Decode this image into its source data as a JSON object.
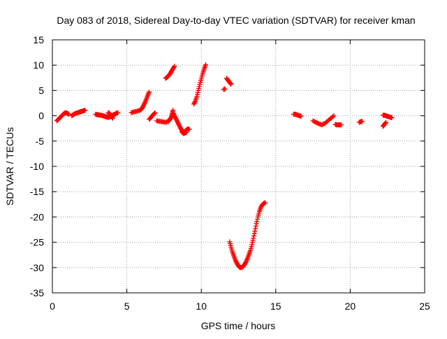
{
  "chart_data": {
    "type": "scatter",
    "title": "Day 083 of 2018, Sidereal Day-to-day VTEC variation (SDTVAR) for receiver kman",
    "xlabel": "GPS time / hours",
    "ylabel": "SDTVAR / TECUs",
    "xlim": [
      0,
      25
    ],
    "ylim": [
      -35,
      15
    ],
    "xticks": [
      "0",
      "5",
      "10",
      "15",
      "20",
      "25"
    ],
    "yticks": [
      "15",
      "10",
      "5",
      "0",
      "-5",
      "-10",
      "-15",
      "-20",
      "-25",
      "-30",
      "-35"
    ],
    "grid": true,
    "marker": "+",
    "color": "#ff0000",
    "series": [
      {
        "name": "SDTVAR",
        "segments": [
          [
            [
              0.3,
              -1.0
            ],
            [
              0.4,
              -0.7
            ],
            [
              0.5,
              -0.4
            ],
            [
              0.6,
              -0.1
            ],
            [
              0.7,
              0.2
            ],
            [
              0.8,
              0.5
            ],
            [
              0.9,
              0.6
            ],
            [
              1.0,
              0.5
            ],
            [
              1.1,
              0.3
            ]
          ],
          [
            [
              1.3,
              0.0
            ],
            [
              1.4,
              0.2
            ],
            [
              1.5,
              0.4
            ],
            [
              1.6,
              0.5
            ],
            [
              1.7,
              0.6
            ],
            [
              1.8,
              0.7
            ],
            [
              1.9,
              0.8
            ],
            [
              2.0,
              0.9
            ],
            [
              2.1,
              1.0
            ],
            [
              2.2,
              1.1
            ]
          ],
          [
            [
              2.9,
              0.3
            ],
            [
              3.0,
              0.2
            ],
            [
              3.1,
              0.2
            ],
            [
              3.2,
              0.1
            ],
            [
              3.3,
              0.1
            ],
            [
              3.4,
              0.0
            ],
            [
              3.5,
              -0.1
            ],
            [
              3.6,
              -0.2
            ],
            [
              3.7,
              -0.3
            ],
            [
              3.8,
              -0.3
            ],
            [
              3.9,
              -0.2
            ],
            [
              4.0,
              0.0
            ],
            [
              4.1,
              0.2
            ],
            [
              4.2,
              0.3
            ],
            [
              4.3,
              0.5
            ],
            [
              4.4,
              0.6
            ]
          ],
          [
            [
              3.75,
              0.6
            ],
            [
              3.85,
              0.4
            ],
            [
              3.95,
              0.0
            ],
            [
              4.05,
              -0.5
            ]
          ],
          [
            [
              5.3,
              0.6
            ],
            [
              5.5,
              0.8
            ],
            [
              5.7,
              0.9
            ],
            [
              5.9,
              1.1
            ],
            [
              6.0,
              1.4
            ],
            [
              6.1,
              1.9
            ],
            [
              6.2,
              2.5
            ],
            [
              6.3,
              3.2
            ],
            [
              6.4,
              4.0
            ],
            [
              6.5,
              4.7
            ]
          ],
          [
            [
              6.5,
              -0.7
            ],
            [
              6.6,
              -0.4
            ],
            [
              6.7,
              0.0
            ],
            [
              6.8,
              0.3
            ],
            [
              6.9,
              0.6
            ]
          ],
          [
            [
              7.0,
              -1.0
            ],
            [
              7.2,
              -1.1
            ],
            [
              7.4,
              -1.2
            ],
            [
              7.6,
              -1.3
            ],
            [
              7.8,
              -1.1
            ],
            [
              7.9,
              -0.7
            ],
            [
              8.0,
              -0.2
            ],
            [
              8.05,
              0.4
            ],
            [
              8.1,
              1.1
            ]
          ],
          [
            [
              7.6,
              7.4
            ],
            [
              7.7,
              7.6
            ],
            [
              7.8,
              7.9
            ],
            [
              7.9,
              8.3
            ],
            [
              8.0,
              8.8
            ],
            [
              8.1,
              9.3
            ],
            [
              8.2,
              9.8
            ]
          ],
          [
            [
              8.1,
              0.6
            ],
            [
              8.2,
              0.0
            ],
            [
              8.3,
              -0.6
            ],
            [
              8.4,
              -1.2
            ],
            [
              8.5,
              -1.8
            ],
            [
              8.6,
              -2.4
            ],
            [
              8.7,
              -2.9
            ],
            [
              8.8,
              -3.3
            ],
            [
              8.9,
              -3.1
            ],
            [
              9.0,
              -2.8
            ],
            [
              9.1,
              -2.6
            ],
            [
              9.2,
              -2.7
            ]
          ],
          [
            [
              8.7,
              -3.2
            ],
            [
              8.8,
              -3.5
            ],
            [
              8.9,
              -3.4
            ],
            [
              9.0,
              -3.3
            ]
          ],
          [
            [
              9.5,
              2.3
            ],
            [
              9.6,
              2.9
            ],
            [
              9.7,
              3.8
            ],
            [
              9.8,
              5.0
            ],
            [
              9.9,
              6.2
            ],
            [
              10.0,
              7.3
            ],
            [
              10.1,
              8.4
            ],
            [
              10.2,
              9.3
            ],
            [
              10.3,
              10.1
            ]
          ],
          [
            [
              11.5,
              5.2
            ],
            [
              11.6,
              5.3
            ]
          ],
          [
            [
              11.7,
              7.4
            ],
            [
              11.8,
              7.0
            ],
            [
              11.9,
              6.6
            ],
            [
              12.0,
              6.2
            ]
          ],
          [
            [
              11.9,
              -24.9
            ],
            [
              12.0,
              -26.0
            ],
            [
              12.1,
              -27.0
            ],
            [
              12.2,
              -27.8
            ],
            [
              12.3,
              -28.6
            ],
            [
              12.4,
              -29.2
            ],
            [
              12.5,
              -29.7
            ],
            [
              12.6,
              -30.0
            ],
            [
              12.7,
              -30.0
            ],
            [
              12.8,
              -29.8
            ],
            [
              12.9,
              -29.4
            ],
            [
              13.0,
              -28.9
            ],
            [
              13.1,
              -28.2
            ],
            [
              13.2,
              -27.4
            ],
            [
              13.3,
              -26.6
            ],
            [
              13.4,
              -25.5
            ],
            [
              13.5,
              -24.2
            ],
            [
              13.6,
              -22.8
            ],
            [
              13.7,
              -21.3
            ],
            [
              13.8,
              -20.0
            ],
            [
              13.9,
              -18.9
            ],
            [
              14.0,
              -18.1
            ],
            [
              14.1,
              -17.6
            ],
            [
              14.2,
              -17.3
            ],
            [
              14.3,
              -17.2
            ]
          ],
          [
            [
              16.2,
              0.3
            ],
            [
              16.3,
              0.3
            ],
            [
              16.4,
              0.2
            ],
            [
              16.5,
              0.1
            ],
            [
              16.6,
              0.0
            ],
            [
              16.7,
              -0.1
            ]
          ],
          [
            [
              17.5,
              -1.0
            ],
            [
              17.7,
              -1.3
            ],
            [
              17.9,
              -1.6
            ],
            [
              18.1,
              -1.8
            ],
            [
              18.3,
              -1.5
            ],
            [
              18.5,
              -1.0
            ],
            [
              18.7,
              -0.5
            ],
            [
              18.9,
              0.0
            ]
          ],
          [
            [
              19.0,
              -1.7
            ],
            [
              19.1,
              -1.8
            ],
            [
              19.2,
              -1.8
            ],
            [
              19.3,
              -1.8
            ],
            [
              19.4,
              -1.8
            ]
          ],
          [
            [
              20.6,
              -1.3
            ],
            [
              20.7,
              -1.2
            ],
            [
              20.8,
              -1.1
            ]
          ],
          [
            [
              22.2,
              -2.1
            ],
            [
              22.3,
              -1.7
            ],
            [
              22.4,
              -1.3
            ]
          ],
          [
            [
              22.2,
              0.1
            ],
            [
              22.3,
              0.1
            ],
            [
              22.4,
              0.0
            ],
            [
              22.5,
              -0.1
            ],
            [
              22.6,
              -0.2
            ],
            [
              22.7,
              -0.3
            ],
            [
              22.8,
              -0.4
            ]
          ]
        ]
      }
    ]
  }
}
